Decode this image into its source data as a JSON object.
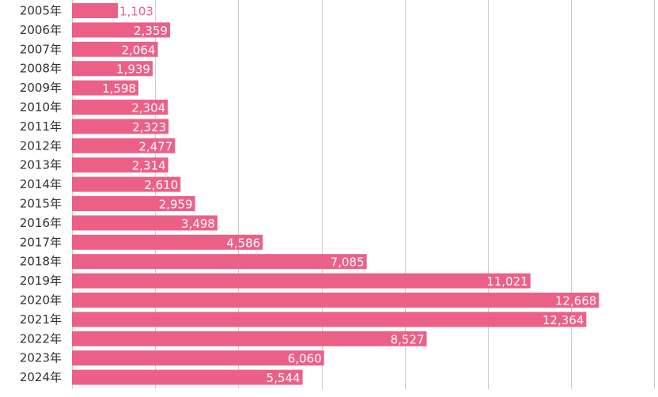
{
  "chart_data": {
    "type": "bar",
    "orientation": "horizontal",
    "categories": [
      "2005年",
      "2006年",
      "2007年",
      "2008年",
      "2009年",
      "2010年",
      "2011年",
      "2012年",
      "2013年",
      "2014年",
      "2015年",
      "2016年",
      "2017年",
      "2018年",
      "2019年",
      "2020年",
      "2021年",
      "2022年",
      "2023年",
      "2024年"
    ],
    "values": [
      1103,
      2359,
      2064,
      1939,
      1598,
      2304,
      2323,
      2477,
      2314,
      2610,
      2959,
      3498,
      4586,
      7085,
      11021,
      12668,
      12364,
      8527,
      6060,
      5544
    ],
    "value_labels": [
      "1,103",
      "2,359",
      "2,064",
      "1,939",
      "1,598",
      "2,304",
      "2,323",
      "2,477",
      "2,314",
      "2,610",
      "2,959",
      "3,498",
      "4,586",
      "7,085",
      "11,021",
      "12,668",
      "12,364",
      "8,527",
      "6,060",
      "5,544"
    ],
    "title": "",
    "xlabel": "",
    "ylabel": "",
    "xlim": [
      0,
      14000
    ],
    "grid": true,
    "bar_color": "#ec6088",
    "label_color_inside": "#ffffff",
    "label_color_outside": "#ec6088",
    "gridline_color": "#cccccc"
  }
}
